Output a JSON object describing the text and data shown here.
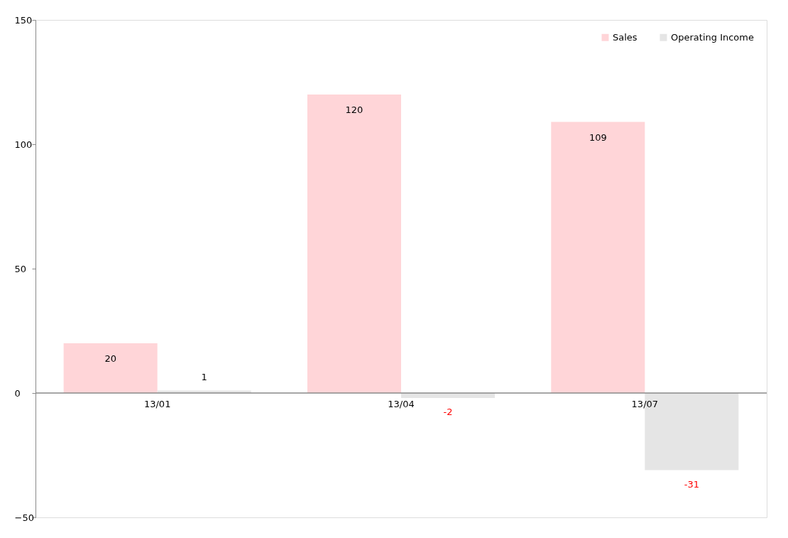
{
  "chart_data": {
    "type": "bar",
    "categories": [
      "13/01",
      "13/04",
      "13/07"
    ],
    "series": [
      {
        "name": "Sales",
        "color": "#ffd5d8",
        "values": [
          20,
          120,
          109
        ]
      },
      {
        "name": "Operating Income",
        "color": "#e5e5e5",
        "values": [
          1,
          -2,
          -31
        ]
      }
    ],
    "ylim": [
      -50,
      150
    ],
    "yticks": [
      -50,
      0,
      50,
      100,
      150
    ],
    "data_labels": true,
    "legend": "top right",
    "grid": false
  }
}
